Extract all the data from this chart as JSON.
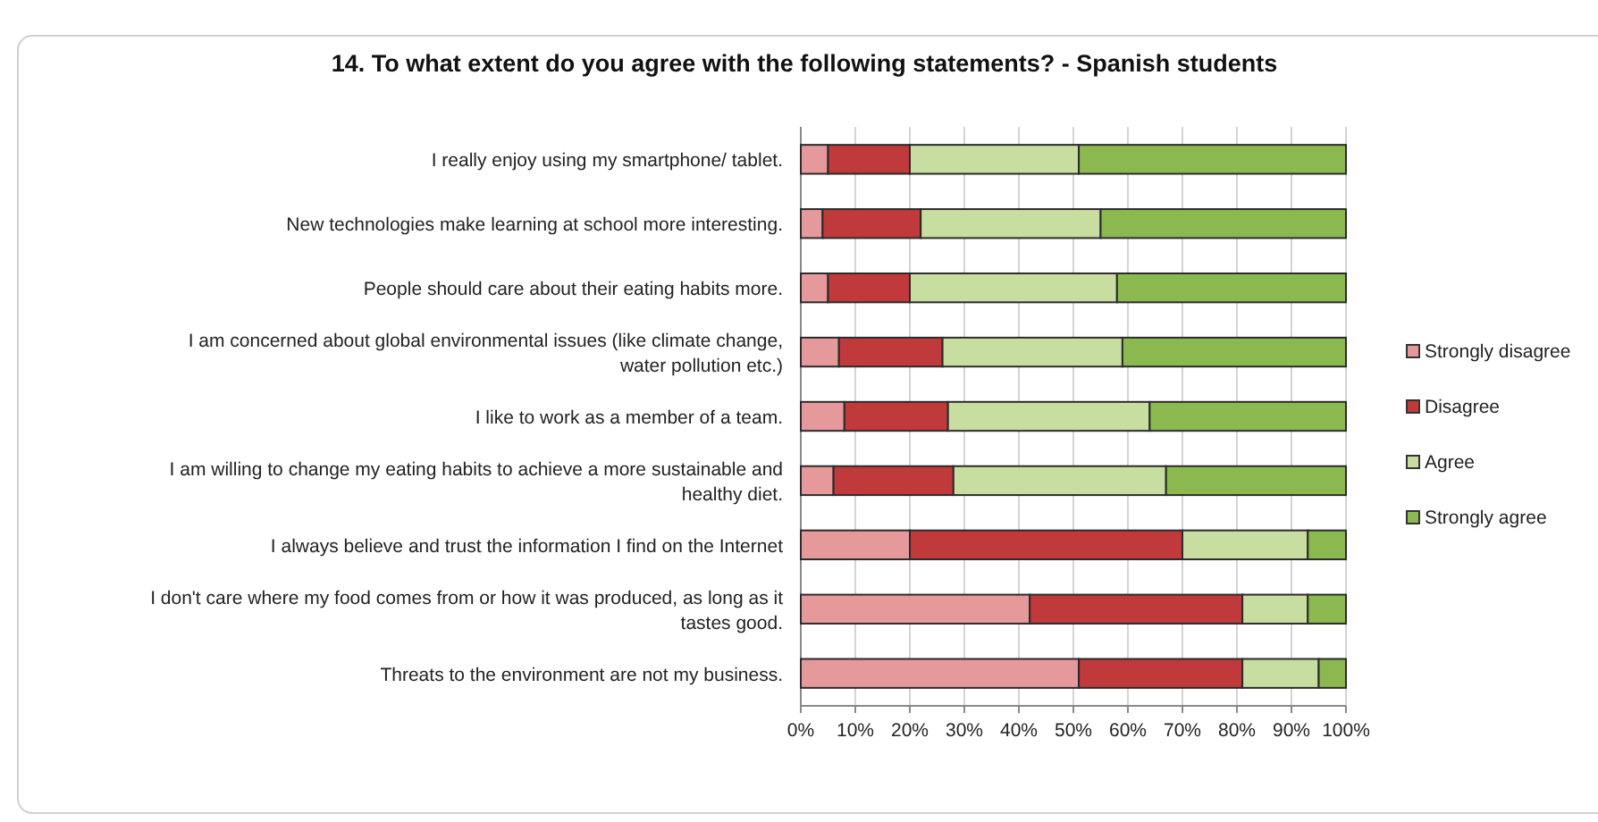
{
  "chart_data": {
    "type": "bar",
    "orientation": "horizontal",
    "stacked": true,
    "title": "14. To what extent do you agree with the following statements? - Spanish students",
    "categories": [
      "I really enjoy using my smartphone/ tablet.",
      "New technologies make learning at school more interesting.",
      "People should care about their eating habits more.",
      "I am concerned about global environmental issues (like climate change, water pollution etc.)",
      "I like to work as a member of a team.",
      "I am willing to change my eating habits to achieve a more sustainable and healthy diet.",
      "I always believe and trust the information I find on the Internet",
      "I don't care where my food comes from or how it was produced, as long as it tastes good.",
      "Threats to the environment are not my business."
    ],
    "series": [
      {
        "name": "Strongly disagree",
        "color": "#e6999b",
        "values": [
          5,
          4,
          5,
          7,
          8,
          6,
          20,
          42,
          51
        ]
      },
      {
        "name": "Disagree",
        "color": "#c0393b",
        "values": [
          15,
          18,
          15,
          19,
          19,
          22,
          50,
          39,
          30
        ]
      },
      {
        "name": "Agree",
        "color": "#c8dea0",
        "values": [
          31,
          33,
          38,
          33,
          37,
          39,
          23,
          12,
          14
        ]
      },
      {
        "name": "Strongly agree",
        "color": "#8cb850",
        "values": [
          49,
          45,
          42,
          41,
          36,
          33,
          7,
          7,
          5
        ]
      }
    ],
    "xlim": [
      0,
      100
    ],
    "xticks": [
      {
        "value": 0,
        "label": "0%"
      },
      {
        "value": 10,
        "label": "10%"
      },
      {
        "value": 20,
        "label": "20%"
      },
      {
        "value": 30,
        "label": "30%"
      },
      {
        "value": 40,
        "label": "40%"
      },
      {
        "value": 50,
        "label": "50%"
      },
      {
        "value": 60,
        "label": "60%"
      },
      {
        "value": 70,
        "label": "70%"
      },
      {
        "value": 80,
        "label": "80%"
      },
      {
        "value": 90,
        "label": "90%"
      },
      {
        "value": 100,
        "label": "100%"
      }
    ],
    "grid": "x",
    "legend": "right"
  }
}
